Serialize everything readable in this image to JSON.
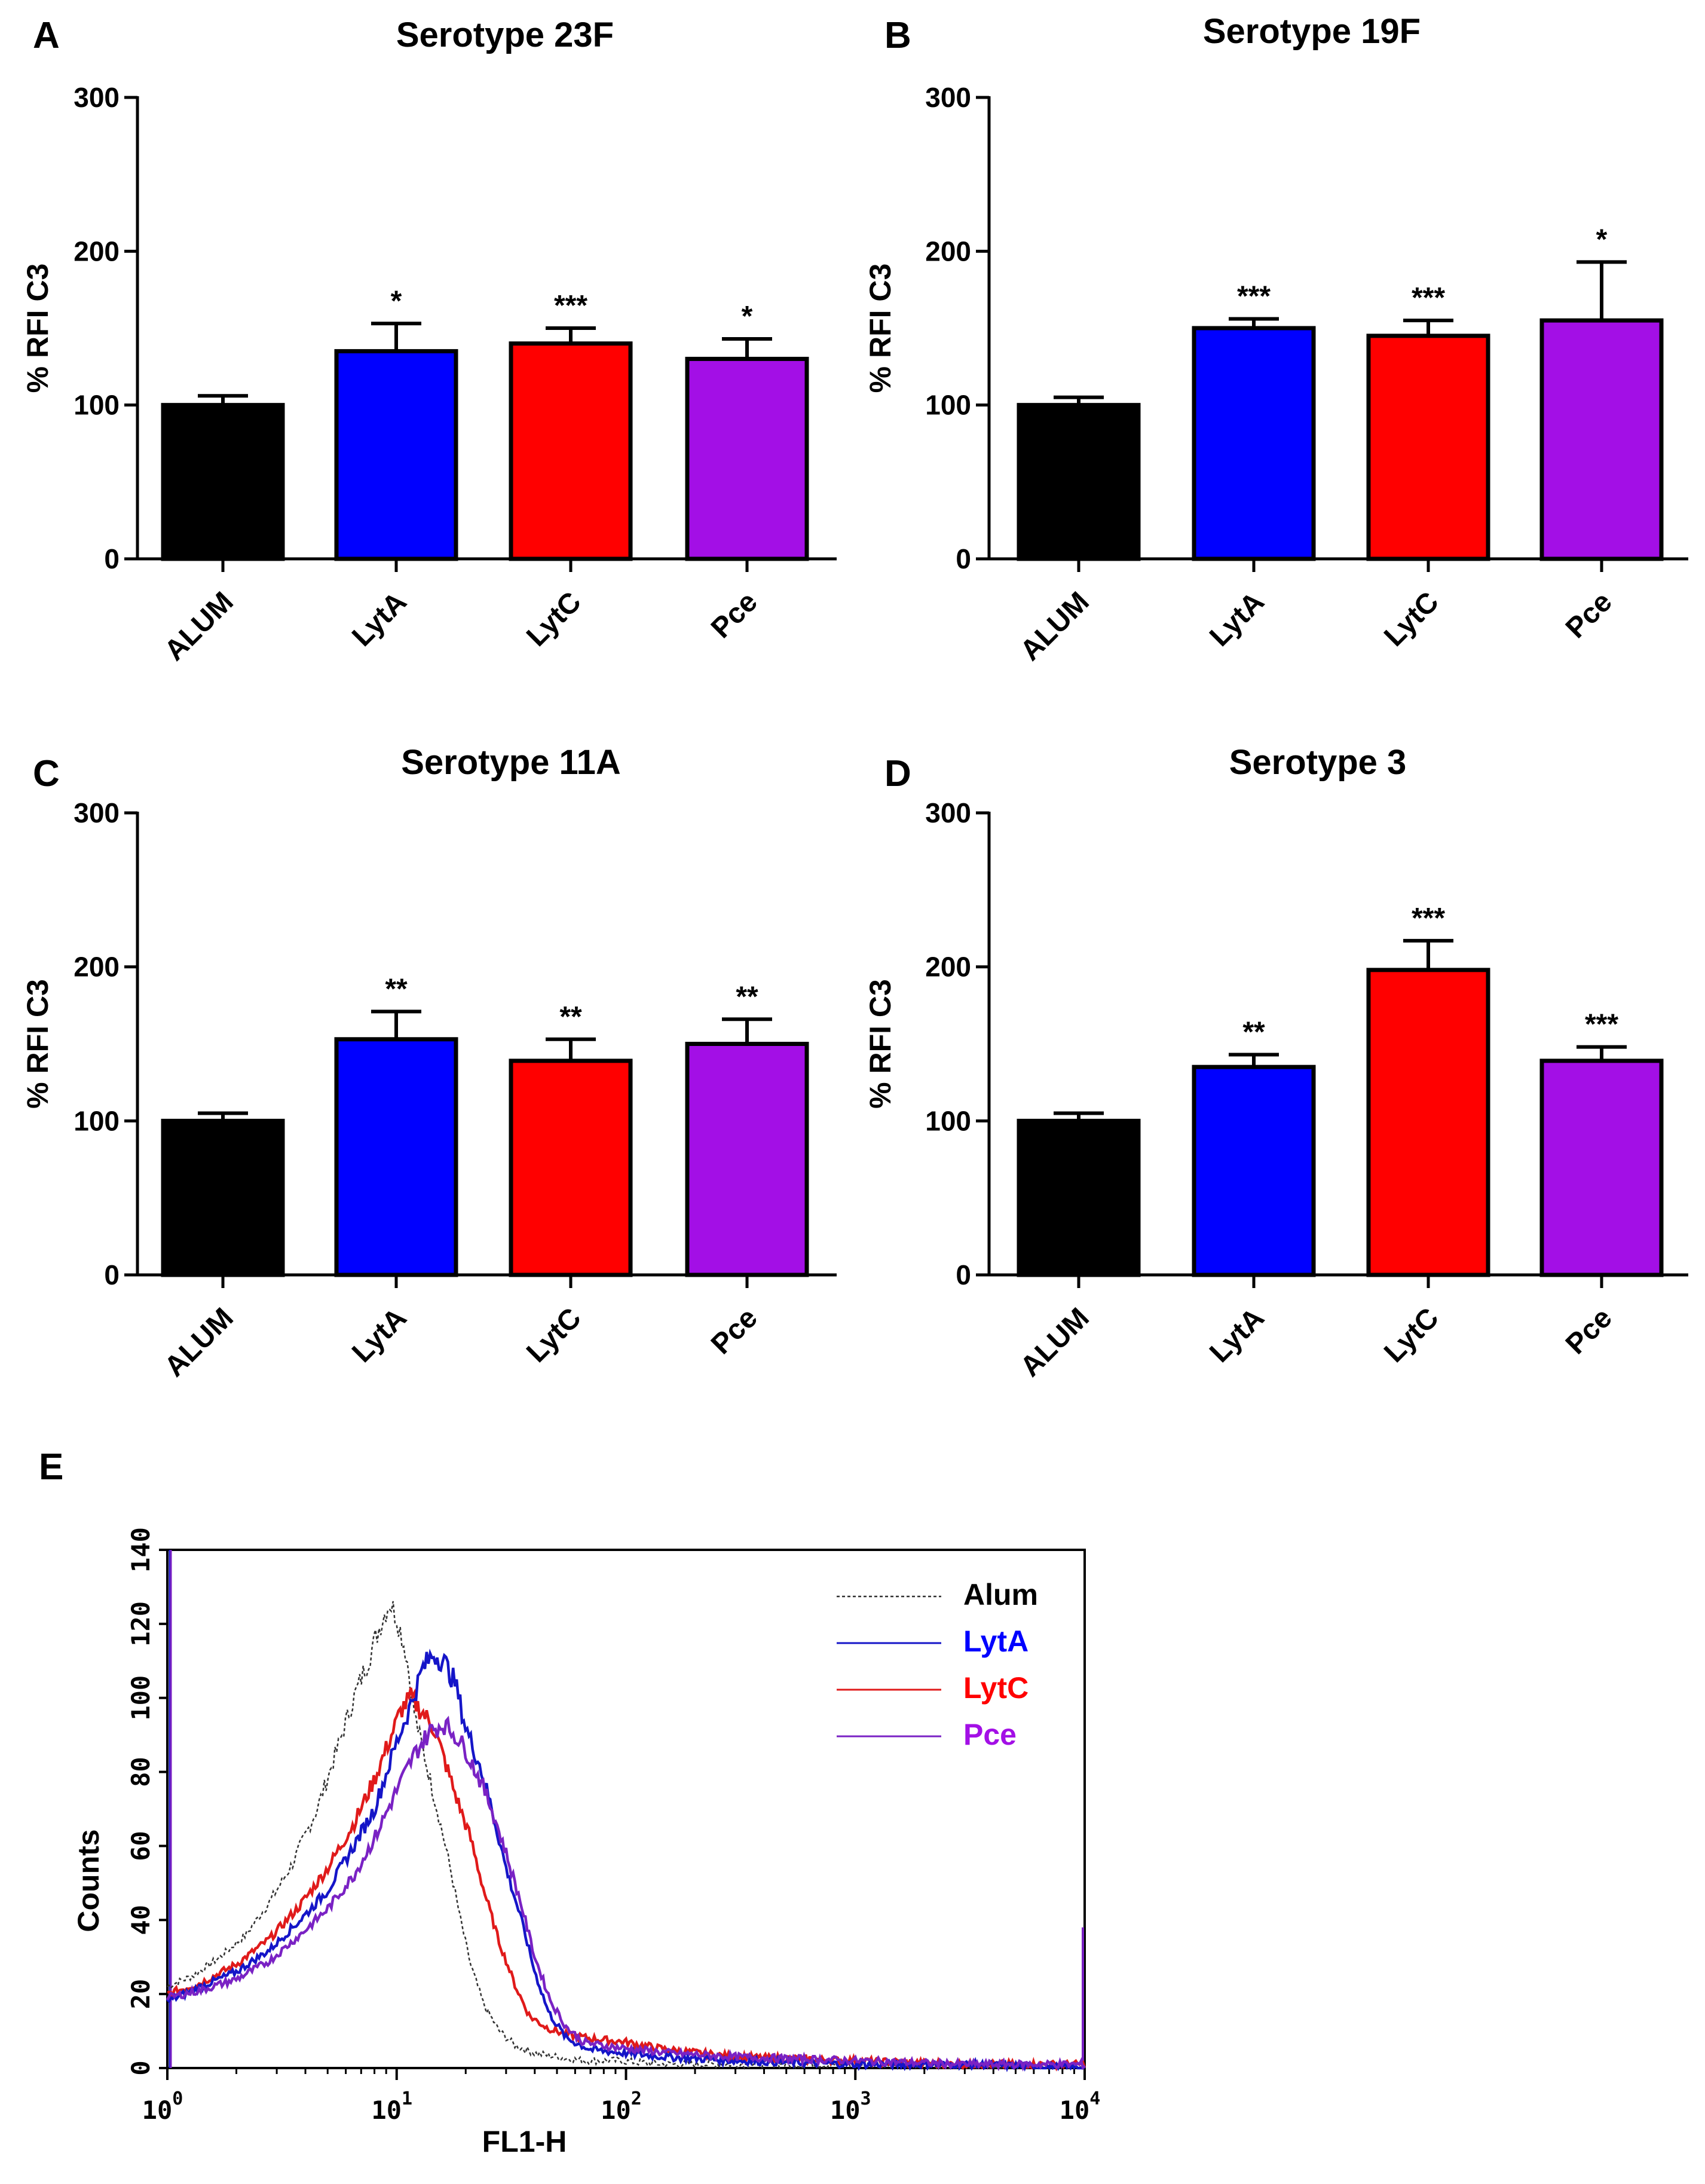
{
  "colors": {
    "ALUM": "#000000",
    "LytA": "#0000ff",
    "LytC": "#ff0000",
    "Pce": "#a30fe6",
    "hist_Alum": "#333333",
    "hist_LytA": "#1515c8",
    "hist_LytC": "#e01a1a",
    "hist_Pce": "#7a22c4"
  },
  "chart_data": [
    {
      "id": "A",
      "type": "bar",
      "panel_label": "A",
      "title": "Serotype 23F",
      "ylabel": "% RFI C3",
      "xlabel": "",
      "ylim": [
        0,
        300
      ],
      "yticks": [
        "0",
        "100",
        "200",
        "300"
      ],
      "categories": [
        "ALUM",
        "LytA",
        "LytC",
        "Pce"
      ],
      "values": [
        100,
        135,
        140,
        130
      ],
      "errors": [
        6,
        18,
        10,
        13
      ],
      "significance": [
        "",
        "*",
        "***",
        "*"
      ]
    },
    {
      "id": "B",
      "type": "bar",
      "panel_label": "B",
      "title": "Serotype 19F",
      "ylabel": "% RFI C3",
      "xlabel": "",
      "ylim": [
        0,
        300
      ],
      "yticks": [
        "0",
        "100",
        "200",
        "300"
      ],
      "categories": [
        "ALUM",
        "LytA",
        "LytC",
        "Pce"
      ],
      "values": [
        100,
        150,
        145,
        155
      ],
      "errors": [
        5,
        6,
        10,
        38
      ],
      "significance": [
        "",
        "***",
        "***",
        "*"
      ]
    },
    {
      "id": "C",
      "type": "bar",
      "panel_label": "C",
      "title": "Serotype 11A",
      "ylabel": "% RFI C3",
      "xlabel": "",
      "ylim": [
        0,
        300
      ],
      "yticks": [
        "0",
        "100",
        "200",
        "300"
      ],
      "categories": [
        "ALUM",
        "LytA",
        "LytC",
        "Pce"
      ],
      "values": [
        100,
        153,
        139,
        150
      ],
      "errors": [
        5,
        18,
        14,
        16
      ],
      "significance": [
        "",
        "**",
        "**",
        "**"
      ]
    },
    {
      "id": "D",
      "type": "bar",
      "panel_label": "D",
      "title": "Serotype 3",
      "ylabel": "% RFI C3",
      "xlabel": "",
      "ylim": [
        0,
        300
      ],
      "yticks": [
        "0",
        "100",
        "200",
        "300"
      ],
      "categories": [
        "ALUM",
        "LytA",
        "LytC",
        "Pce"
      ],
      "values": [
        100,
        135,
        198,
        139
      ],
      "errors": [
        5,
        8,
        19,
        9
      ],
      "significance": [
        "",
        "**",
        "***",
        "***"
      ]
    },
    {
      "id": "E",
      "type": "line",
      "panel_label": "E",
      "title": "",
      "xlabel": "FL1-H",
      "ylabel": "Counts",
      "xscale": "log",
      "xlim": [
        1,
        10000
      ],
      "ylim": [
        0,
        140
      ],
      "yticks": [
        "0",
        "20",
        "40",
        "60",
        "80",
        "100",
        "120",
        "140"
      ],
      "xticks": [
        {
          "base": "10",
          "exp": "0"
        },
        {
          "base": "10",
          "exp": "1"
        },
        {
          "base": "10",
          "exp": "2"
        },
        {
          "base": "10",
          "exp": "3"
        },
        {
          "base": "10",
          "exp": "4"
        }
      ],
      "legend_position": "top-right",
      "series": [
        {
          "name": "Alum",
          "style": "dashed",
          "x": [
            1,
            1.3,
            1.7,
            2.2,
            2.8,
            3.5,
            4.5,
            5.5,
            6.5,
            7.5,
            8.5,
            9.3,
            10,
            11,
            12,
            13.5,
            15,
            17,
            19,
            21,
            24,
            28,
            33,
            40,
            50,
            65,
            90,
            150,
            300,
            1000,
            3000,
            9500
          ],
          "y": [
            22,
            25,
            30,
            36,
            45,
            55,
            70,
            86,
            100,
            110,
            120,
            126,
            122,
            112,
            95,
            82,
            70,
            55,
            40,
            28,
            17,
            10,
            6,
            4,
            3,
            2,
            2,
            1,
            1,
            1,
            0,
            0
          ]
        },
        {
          "name": "LytA",
          "style": "solid",
          "x": [
            1,
            1.4,
            2,
            2.8,
            3.8,
            5,
            6.5,
            8,
            10,
            11.5,
            13,
            14.5,
            16,
            18,
            20,
            23,
            26,
            30,
            35,
            40,
            46,
            55,
            70,
            100,
            150,
            300,
            1000,
            3000,
            9500
          ],
          "y": [
            18,
            22,
            26,
            32,
            40,
            48,
            60,
            70,
            88,
            98,
            108,
            112,
            110,
            104,
            92,
            82,
            70,
            54,
            40,
            26,
            15,
            8,
            5,
            4,
            3,
            2,
            1,
            1,
            0
          ]
        },
        {
          "name": "LytC",
          "style": "solid",
          "x": [
            1,
            1.4,
            2,
            2.8,
            3.8,
            5,
            6.5,
            8,
            9.5,
            10.5,
            11.5,
            13,
            14.5,
            16,
            18,
            21,
            24,
            28,
            33,
            38,
            45,
            55,
            70,
            100,
            150,
            300,
            1000,
            3000,
            9500
          ],
          "y": [
            20,
            23,
            28,
            35,
            44,
            54,
            66,
            78,
            90,
            97,
            100,
            96,
            92,
            84,
            74,
            62,
            48,
            34,
            22,
            14,
            11,
            9,
            8,
            7,
            5,
            3,
            2,
            1,
            1
          ]
        },
        {
          "name": "Pce",
          "style": "solid",
          "x": [
            1,
            1.4,
            2,
            2.8,
            3.8,
            5,
            6.5,
            8,
            10,
            12,
            14,
            16,
            18,
            20,
            23,
            26,
            30,
            35,
            40,
            47,
            55,
            65,
            80,
            110,
            160,
            300,
            1000,
            3000,
            9500
          ],
          "y": [
            19,
            21,
            24,
            29,
            36,
            43,
            52,
            62,
            75,
            85,
            91,
            93,
            90,
            86,
            78,
            70,
            58,
            44,
            30,
            18,
            11,
            7,
            6,
            5,
            4,
            3,
            2,
            1,
            1
          ]
        }
      ]
    }
  ]
}
